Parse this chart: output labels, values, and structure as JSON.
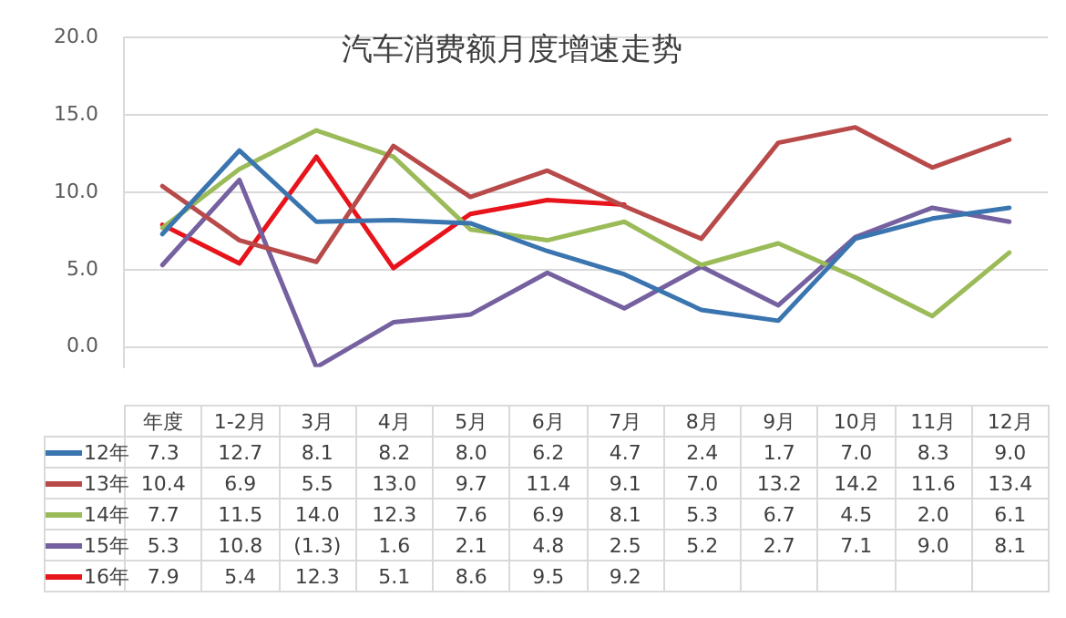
{
  "chart_data": {
    "type": "line",
    "title": "汽车消费额月度增速走势",
    "categories": [
      "年度",
      "1-2月",
      "3月",
      "4月",
      "5月",
      "6月",
      "7月",
      "8月",
      "9月",
      "10月",
      "11月",
      "12月"
    ],
    "series": [
      {
        "name": "12年",
        "color": "#3a75b0",
        "values": [
          7.3,
          12.7,
          8.1,
          8.2,
          8.0,
          6.2,
          4.7,
          2.4,
          1.7,
          7.0,
          8.3,
          9.0
        ],
        "value_labels": [
          "7.3",
          "12.7",
          "8.1",
          "8.2",
          "8.0",
          "6.2",
          "4.7",
          "2.4",
          "1.7",
          "7.0",
          "8.3",
          "9.0"
        ]
      },
      {
        "name": "13年",
        "color": "#b84a4a",
        "values": [
          10.4,
          6.9,
          5.5,
          13.0,
          9.7,
          11.4,
          9.1,
          7.0,
          13.2,
          14.2,
          11.6,
          13.4
        ],
        "value_labels": [
          "10.4",
          "6.9",
          "5.5",
          "13.0",
          "9.7",
          "11.4",
          "9.1",
          "7.0",
          "13.2",
          "14.2",
          "11.6",
          "13.4"
        ]
      },
      {
        "name": "14年",
        "color": "#9bbb59",
        "values": [
          7.7,
          11.5,
          14.0,
          12.3,
          7.6,
          6.9,
          8.1,
          5.3,
          6.7,
          4.5,
          2.0,
          6.1
        ],
        "value_labels": [
          "7.7",
          "11.5",
          "14.0",
          "12.3",
          "7.6",
          "6.9",
          "8.1",
          "5.3",
          "6.7",
          "4.5",
          "2.0",
          "6.1"
        ]
      },
      {
        "name": "15年",
        "color": "#7560a0",
        "values": [
          5.3,
          10.8,
          -1.3,
          1.6,
          2.1,
          4.8,
          2.5,
          5.2,
          2.7,
          7.1,
          9.0,
          8.1
        ],
        "value_labels": [
          "5.3",
          "10.8",
          "(1.3)",
          "1.6",
          "2.1",
          "4.8",
          "2.5",
          "5.2",
          "2.7",
          "7.1",
          "9.0",
          "8.1"
        ]
      },
      {
        "name": "16年",
        "color": "#e8141c",
        "values": [
          7.9,
          5.4,
          12.3,
          5.1,
          8.6,
          9.5,
          9.2,
          null,
          null,
          null,
          null,
          null
        ],
        "value_labels": [
          "7.9",
          "5.4",
          "12.3",
          "5.1",
          "8.6",
          "9.5",
          "9.2",
          null,
          null,
          null,
          null,
          null
        ]
      }
    ],
    "ylim": [
      -1.3,
      20
    ],
    "yticks": [
      {
        "value": 0,
        "label": "0.0"
      },
      {
        "value": 5,
        "label": "5.0"
      },
      {
        "value": 10,
        "label": "10.0"
      },
      {
        "value": 15,
        "label": "15.0"
      },
      {
        "value": 20,
        "label": "20.0"
      }
    ],
    "grid": "y",
    "legend": "bottom",
    "marker": "none",
    "line_style": "solid"
  }
}
